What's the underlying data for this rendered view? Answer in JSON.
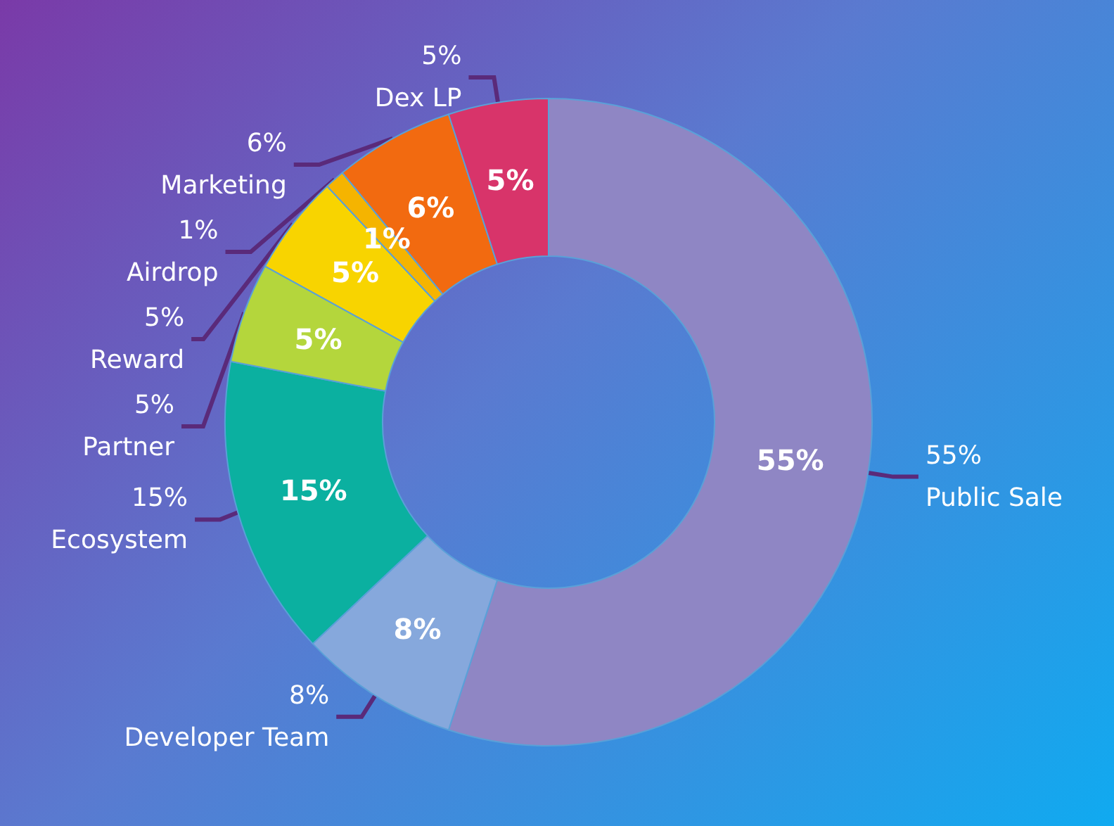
{
  "chart_data": {
    "type": "donut",
    "categories": [
      "Public Sale",
      "Developer Team",
      "Ecosystem",
      "Partner",
      "Reward",
      "Airdrop",
      "Marketing",
      "Dex LP"
    ],
    "values": [
      55,
      8,
      15,
      5,
      5,
      1,
      6,
      5
    ],
    "value_labels": [
      "55%",
      "8%",
      "15%",
      "5%",
      "5%",
      "1%",
      "6%",
      "5%"
    ],
    "colors": [
      "#8f86c4",
      "#86a8dc",
      "#0bb0a0",
      "#b4d63c",
      "#f8d400",
      "#f5b400",
      "#f26a10",
      "#d8346a"
    ],
    "legend": false
  }
}
